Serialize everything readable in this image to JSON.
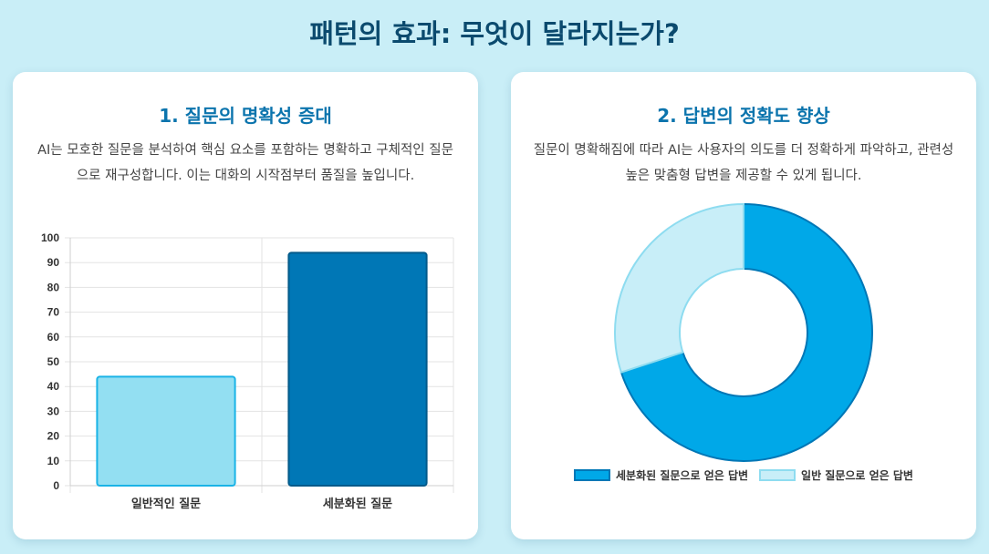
{
  "page": {
    "title": "패턴의 효과: 무엇이 달라지는가?"
  },
  "cards": [
    {
      "title": "1. 질문의 명확성 증대",
      "description": "AI는 모호한 질문을 분석하여 핵심 요소를 포함하는 명확하고 구체적인 질문으로 재구성합니다. 이는 대화의 시작점부터 품질을 높입니다."
    },
    {
      "title": "2. 답변의 정확도 향상",
      "description": "질문이 명확해짐에 따라 AI는 사용자의 의도를 더 정확하게 파악하고, 관련성 높은 맞춤형 답변을 제공할 수 있게 됩니다."
    }
  ],
  "chart_data": [
    {
      "type": "bar",
      "categories": [
        "일반적인 질문",
        "세분화된 질문"
      ],
      "values": [
        44,
        94
      ],
      "ylim": [
        0,
        100
      ],
      "yticks": [
        0,
        10,
        20,
        30,
        40,
        50,
        60,
        70,
        80,
        90,
        100
      ],
      "grid": true,
      "colors": [
        {
          "fill": "#93dff2",
          "stroke": "#1ab3e6"
        },
        {
          "fill": "#0077b6",
          "stroke": "#035a8a"
        }
      ]
    },
    {
      "type": "pie",
      "labels": [
        "세분화된 질문으로 얻은 답변",
        "일반 질문으로 얻은 답변"
      ],
      "values": [
        70,
        30
      ],
      "legend_position": "bottom",
      "colors": [
        {
          "fill": "#00a8e8",
          "stroke": "#0077b6"
        },
        {
          "fill": "#c8eef8",
          "stroke": "#8edcf0"
        }
      ]
    }
  ]
}
